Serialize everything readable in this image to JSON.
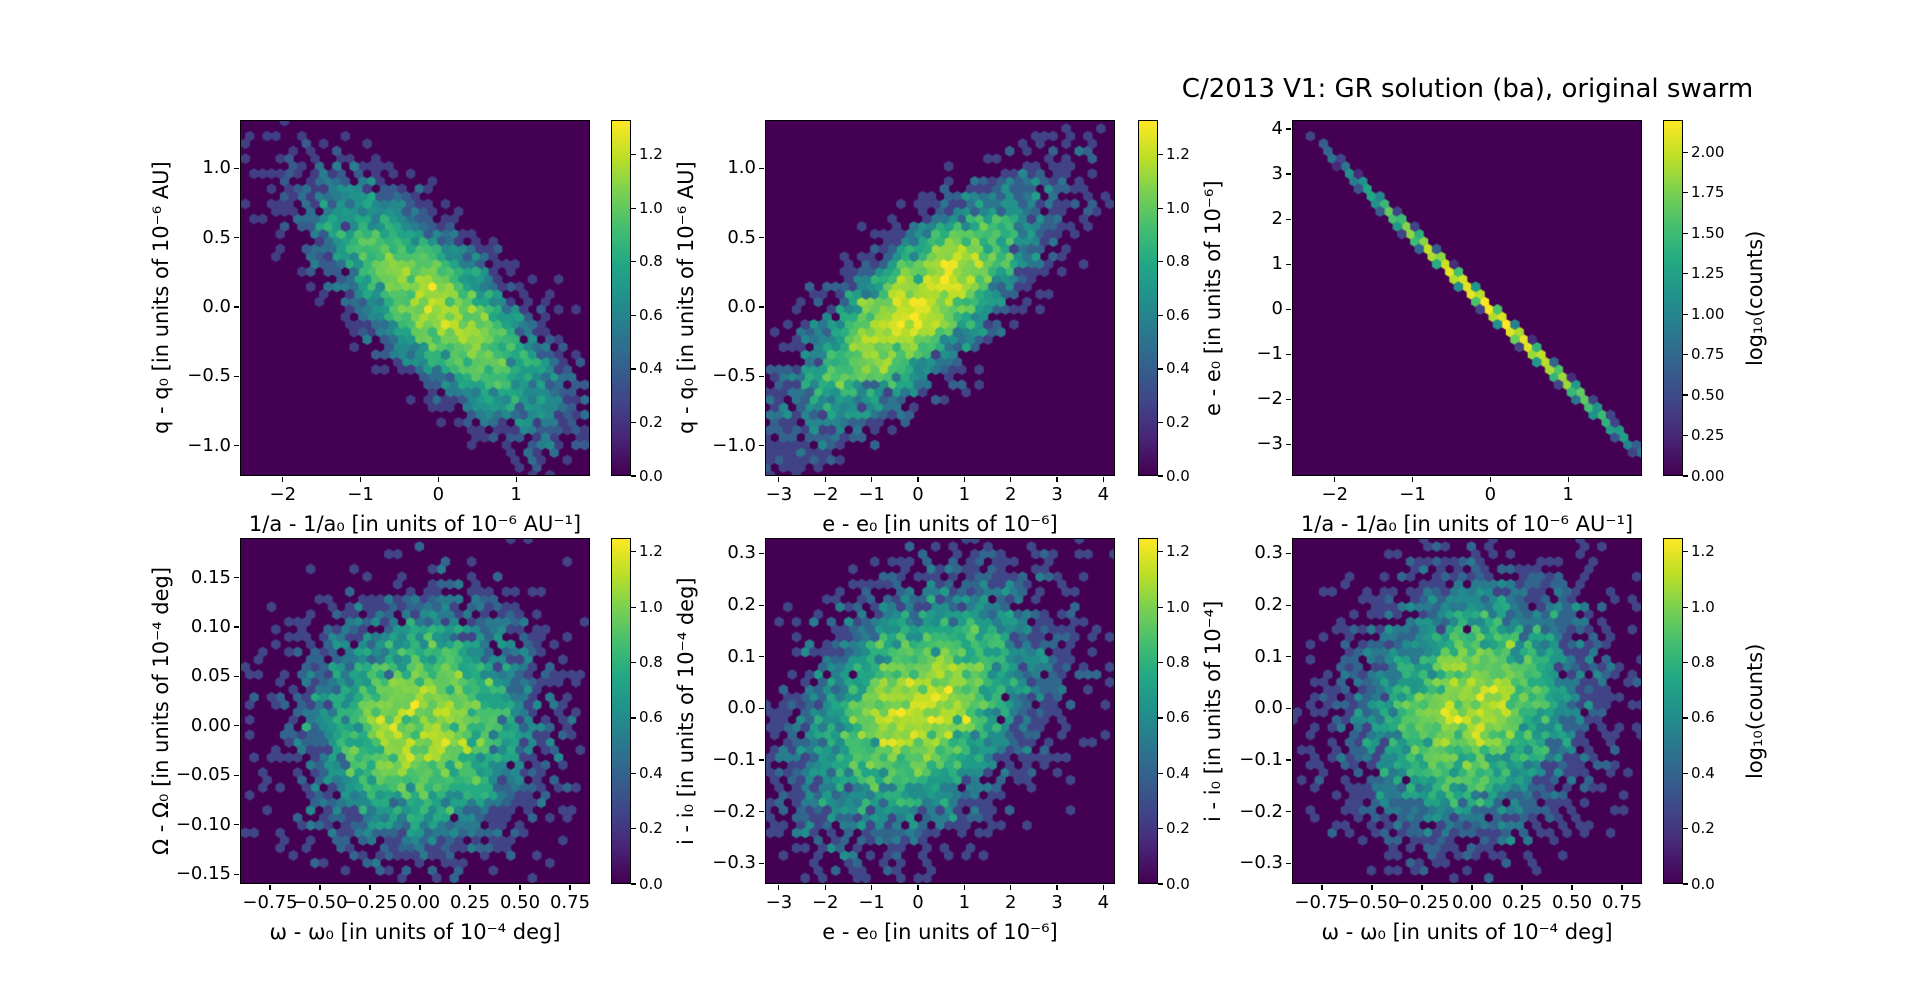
{
  "chart_data": {
    "type": "hexbin",
    "colormap": "viridis",
    "colormap_stops": [
      "#440154",
      "#482475",
      "#414487",
      "#355f8d",
      "#2a788e",
      "#21918c",
      "#22a884",
      "#44bf70",
      "#7ad151",
      "#bddf26",
      "#fde725"
    ],
    "background_bin_color": "#440154",
    "title": "C/2013 V1: GR solution (ba), original swarm",
    "panels": [
      {
        "name": "top-left",
        "xlabel": "1/a - 1/a₀ [in units of 10⁻⁶ AU⁻¹]",
        "ylabel": "q - q₀ [in units of 10⁻⁶ AU]",
        "xlim": [
          -2.55,
          1.95
        ],
        "ylim": [
          -1.22,
          1.35
        ],
        "xtick_values": [
          -2,
          -1,
          0,
          1
        ],
        "xtick_labels": [
          "−2",
          "−1",
          "0",
          "1"
        ],
        "ytick_values": [
          1.0,
          0.5,
          0.0,
          -0.5,
          -1.0
        ],
        "ytick_labels": [
          "1.0",
          "0.5",
          "0.0",
          "−0.5",
          "−1.0"
        ],
        "colorbar": {
          "vmax": 1.33,
          "tick_values": [
            0.0,
            0.2,
            0.4,
            0.6,
            0.8,
            1.0,
            1.2
          ],
          "tick_labels": [
            "0.0",
            "0.2",
            "0.4",
            "0.6",
            "0.8",
            "1.0",
            "1.2"
          ]
        },
        "distribution": {
          "kind": "gaussian",
          "n": 5500,
          "center": [
            0,
            0
          ],
          "sigma": [
            0.75,
            0.42
          ],
          "corr": -0.78,
          "seed": 11,
          "description": "anti-correlated elliptical cloud of orbit clones"
        }
      },
      {
        "name": "top-middle",
        "xlabel": "e - e₀ [in units of 10⁻⁶]",
        "ylabel": "q - q₀ [in units of 10⁻⁶ AU]",
        "xlim": [
          -3.3,
          4.25
        ],
        "ylim": [
          -1.22,
          1.35
        ],
        "xtick_values": [
          -3,
          -2,
          -1,
          0,
          1,
          2,
          3,
          4
        ],
        "xtick_labels": [
          "−3",
          "−2",
          "−1",
          "0",
          "1",
          "2",
          "3",
          "4"
        ],
        "ytick_values": [
          1.0,
          0.5,
          0.0,
          -0.5,
          -1.0
        ],
        "ytick_labels": [
          "1.0",
          "0.5",
          "0.0",
          "−0.5",
          "−1.0"
        ],
        "colorbar": {
          "vmax": 1.33,
          "tick_values": [
            0.0,
            0.2,
            0.4,
            0.6,
            0.8,
            1.0,
            1.2
          ],
          "tick_labels": [
            "0.0",
            "0.2",
            "0.4",
            "0.6",
            "0.8",
            "1.0",
            "1.2"
          ]
        },
        "distribution": {
          "kind": "gaussian",
          "n": 5500,
          "center": [
            0,
            0
          ],
          "sigma": [
            1.3,
            0.42
          ],
          "corr": 0.78,
          "seed": 22,
          "description": "positively correlated elliptical cloud of orbit clones"
        }
      },
      {
        "name": "top-right",
        "xlabel": "1/a - 1/a₀ [in units of 10⁻⁶ AU⁻¹]",
        "ylabel": "e - e₀ [in units of 10⁻⁶]",
        "xlim": [
          -2.55,
          1.95
        ],
        "ylim": [
          -3.7,
          4.2
        ],
        "xtick_values": [
          -2,
          -1,
          0,
          1
        ],
        "xtick_labels": [
          "−2",
          "−1",
          "0",
          "1"
        ],
        "ytick_values": [
          4,
          3,
          2,
          1,
          0,
          -1,
          -2,
          -3
        ],
        "ytick_labels": [
          "4",
          "3",
          "2",
          "1",
          "0",
          "−1",
          "−2",
          "−3"
        ],
        "colorbar": {
          "vmax": 2.2,
          "tick_values": [
            0.0,
            0.25,
            0.5,
            0.75,
            1.0,
            1.25,
            1.5,
            1.75,
            2.0
          ],
          "tick_labels": [
            "0.00",
            "0.25",
            "0.50",
            "0.75",
            "1.00",
            "1.25",
            "1.50",
            "1.75",
            "2.00"
          ],
          "label": "log₁₀(counts)"
        },
        "distribution": {
          "kind": "gaussian",
          "n": 5500,
          "center": [
            0,
            0
          ],
          "sigma": [
            0.75,
            1.25
          ],
          "corr": -0.9995,
          "seed": 33,
          "description": "near-perfect anti-correlation: thin diagonal line, yellow in middle fading to blue at ends"
        }
      },
      {
        "name": "bottom-left",
        "xlabel": "ω - ω₀ [in units of 10⁻⁴ deg]",
        "ylabel": "Ω - Ω₀ [in units of 10⁻⁴ deg]",
        "xlim": [
          -0.9,
          0.85
        ],
        "ylim": [
          -0.16,
          0.19
        ],
        "xtick_values": [
          -0.75,
          -0.5,
          -0.25,
          0.0,
          0.25,
          0.5,
          0.75
        ],
        "xtick_labels": [
          "−0.75",
          "−0.50",
          "−0.25",
          "0.00",
          "0.25",
          "0.50",
          "0.75"
        ],
        "ytick_values": [
          0.15,
          0.1,
          0.05,
          0.0,
          -0.05,
          -0.1,
          -0.15
        ],
        "ytick_labels": [
          "0.15",
          "0.10",
          "0.05",
          "0.00",
          "−0.05",
          "−0.10",
          "−0.15"
        ],
        "colorbar": {
          "vmax": 1.25,
          "tick_values": [
            0.0,
            0.2,
            0.4,
            0.6,
            0.8,
            1.0,
            1.2
          ],
          "tick_labels": [
            "0.0",
            "0.2",
            "0.4",
            "0.6",
            "0.8",
            "1.0",
            "1.2"
          ]
        },
        "distribution": {
          "kind": "gaussian",
          "n": 5500,
          "center": [
            0,
            0
          ],
          "sigma": [
            0.28,
            0.058
          ],
          "corr": 0.02,
          "seed": 44,
          "description": "roughly isotropic round cloud"
        }
      },
      {
        "name": "bottom-middle",
        "xlabel": "e - e₀ [in units of 10⁻⁶]",
        "ylabel": "i - i₀ [in units of 10⁻⁴ deg]",
        "xlim": [
          -3.3,
          4.25
        ],
        "ylim": [
          -0.34,
          0.33
        ],
        "xtick_values": [
          -3,
          -2,
          -1,
          0,
          1,
          2,
          3,
          4
        ],
        "xtick_labels": [
          "−3",
          "−2",
          "−1",
          "0",
          "1",
          "2",
          "3",
          "4"
        ],
        "ytick_values": [
          0.3,
          0.2,
          0.1,
          0.0,
          -0.1,
          -0.2,
          -0.3
        ],
        "ytick_labels": [
          "0.3",
          "0.2",
          "0.1",
          "0.0",
          "−0.1",
          "−0.2",
          "−0.3"
        ],
        "colorbar": {
          "vmax": 1.25,
          "tick_values": [
            0.0,
            0.2,
            0.4,
            0.6,
            0.8,
            1.0,
            1.2
          ],
          "tick_labels": [
            "0.0",
            "0.2",
            "0.4",
            "0.6",
            "0.8",
            "1.0",
            "1.2"
          ]
        },
        "distribution": {
          "kind": "gaussian",
          "n": 5500,
          "center": [
            0,
            0
          ],
          "sigma": [
            1.3,
            0.115
          ],
          "corr": 0.35,
          "seed": 55,
          "description": "slightly positively correlated round cloud"
        }
      },
      {
        "name": "bottom-right",
        "xlabel": "ω - ω₀ [in units of 10⁻⁴ deg]",
        "ylabel": "i - i₀ [in units of 10⁻⁴]",
        "xlim": [
          -0.9,
          0.85
        ],
        "ylim": [
          -0.34,
          0.33
        ],
        "xtick_values": [
          -0.75,
          -0.5,
          -0.25,
          0.0,
          0.25,
          0.5,
          0.75
        ],
        "xtick_labels": [
          "−0.75",
          "−0.50",
          "−0.25",
          "0.00",
          "0.25",
          "0.50",
          "0.75"
        ],
        "ytick_values": [
          0.3,
          0.2,
          0.1,
          0.0,
          -0.1,
          -0.2,
          -0.3
        ],
        "ytick_labels": [
          "0.3",
          "0.2",
          "0.1",
          "0.0",
          "−0.1",
          "−0.2",
          "−0.3"
        ],
        "colorbar": {
          "vmax": 1.25,
          "tick_values": [
            0.0,
            0.2,
            0.4,
            0.6,
            0.8,
            1.0,
            1.2
          ],
          "tick_labels": [
            "0.0",
            "0.2",
            "0.4",
            "0.6",
            "0.8",
            "1.0",
            "1.2"
          ],
          "label": "log₁₀(counts)"
        },
        "distribution": {
          "kind": "gaussian",
          "n": 5500,
          "center": [
            0,
            0
          ],
          "sigma": [
            0.28,
            0.115
          ],
          "corr": 0.15,
          "seed": 66,
          "description": "roughly isotropic round cloud"
        }
      }
    ]
  }
}
